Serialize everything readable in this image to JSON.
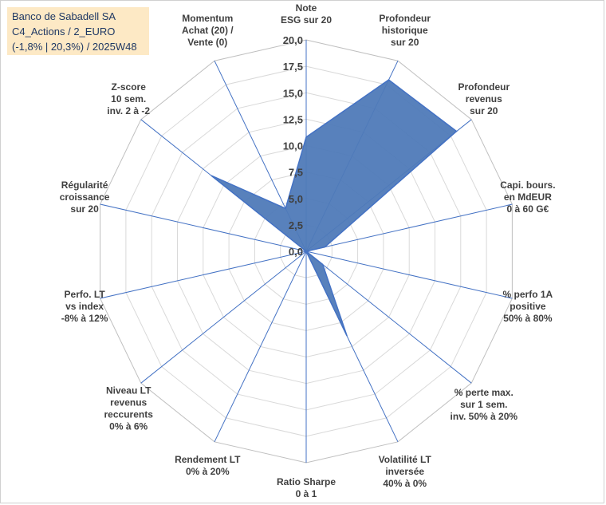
{
  "info": {
    "line1": "Banco de Sabadell SA",
    "line2": "C4_Actions / 2_EURO",
    "line3": "(-1,8% | 20,3%) / 2025W48"
  },
  "colors": {
    "fill": "#4f7ab8",
    "stroke": "#4472c4",
    "grid": "#d9d9d9",
    "spoke": "#4472c4",
    "infobox": "#fde9c5"
  },
  "chart_data": {
    "type": "radar",
    "title": "",
    "rmin": 0,
    "rmax": 20,
    "ticks": [
      "0,0",
      "2,5",
      "5,0",
      "7,5",
      "10,0",
      "12,5",
      "15,0",
      "17,5",
      "20,0"
    ],
    "grid": true,
    "axes": [
      [
        "Note",
        "ESG sur 20"
      ],
      [
        "Profondeur",
        "historique",
        "sur 20"
      ],
      [
        "Profondeur",
        "revenus",
        "sur 20"
      ],
      [
        "Capi. bours.",
        "en MdEUR",
        "0 à 60 G€"
      ],
      [
        "% perfo 1A",
        "positive",
        "50% à 80%"
      ],
      [
        "% perte max.",
        "sur 1 sem.",
        "inv. 50% à 20%"
      ],
      [
        "Volatilité LT",
        "inversée",
        "40% à 0%"
      ],
      [
        "Ratio Sharpe",
        "0 à 1"
      ],
      [
        "Rendement LT",
        "0% à 20%"
      ],
      [
        "Niveau LT",
        "revenus",
        "reccurents",
        "0% à 6%"
      ],
      [
        "Perfo. LT",
        "vs index",
        "-8% à 12%"
      ],
      [
        "Régularité",
        "croissance",
        "sur 20"
      ],
      [
        "Z-score",
        "10 sem.",
        "inv. 2 à -2"
      ],
      [
        "Momentum",
        "Achat (20) /",
        "Vente (0)"
      ]
    ],
    "values": [
      10.8,
      18.0,
      18.2,
      1.8,
      0.0,
      2.0,
      8.9,
      0.0,
      0.0,
      0.0,
      0.0,
      0.0,
      11.5,
      4.5
    ]
  }
}
